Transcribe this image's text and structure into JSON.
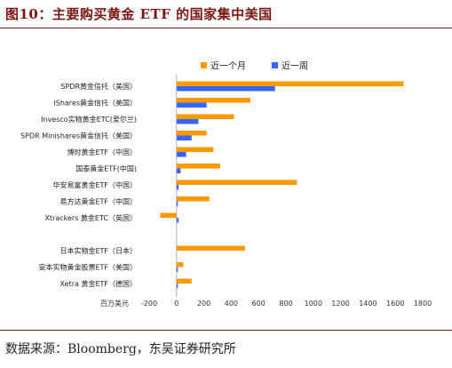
{
  "header": {
    "title": "图10：主要购买黄金 ETF 的国家集中美国"
  },
  "footer": {
    "source": "数据来源：Bloomberg，东吴证券研究所"
  },
  "chart_data": {
    "type": "bar",
    "orientation": "horizontal",
    "title": "图10：主要购买黄金 ETF 的国家集中美国",
    "unit_label": "百万美元",
    "categories": [
      "SPDR黄金信托（美国）",
      "iShares黄金信托（美国）",
      "Invesco实物黄金ETC(爱尔兰)",
      "SPDR Minishares黄金信托（美国）",
      "博时黄金ETF（中国）",
      "国泰黄金ETF(中国)",
      "华安易富黄金ETF（中国）",
      "易方达黄金ETF（中国）",
      "Xtrackers 黄金ETC（英国）",
      "",
      "日本实物金ETF（日本）",
      "安本实物黄金股票ETF（美国）",
      "Xetra 黄金ETF（德国）"
    ],
    "series": [
      {
        "name": "近一个月",
        "color": "#FF9900",
        "values": [
          1660,
          540,
          420,
          220,
          270,
          320,
          880,
          240,
          -120,
          null,
          500,
          50,
          110
        ]
      },
      {
        "name": "近一周",
        "color": "#3366FF",
        "values": [
          720,
          220,
          160,
          110,
          70,
          30,
          15,
          10,
          15,
          null,
          0,
          10,
          10
        ]
      }
    ],
    "xlim": [
      -200,
      1800
    ],
    "xticks": [
      -200,
      0,
      200,
      400,
      600,
      800,
      1000,
      1200,
      1400,
      1600,
      1800
    ],
    "grid": false,
    "legend_position": "top-right"
  }
}
